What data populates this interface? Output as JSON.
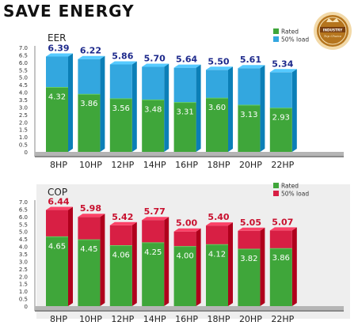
{
  "page": {
    "heading": "SAVE ENERGY",
    "badge": {
      "icon": "industry-award-badge-icon",
      "line1": "INDUSTRY",
      "line2": "Top Choice"
    }
  },
  "colors": {
    "rated": "#3fa63a",
    "eer_load": "#33a7df",
    "cop_load": "#d81f44",
    "eer_top_text": "#1e2a8c",
    "cop_top_text": "#c8102e",
    "panel_bg": "#eeeeee"
  },
  "chart_data": [
    {
      "type": "bar",
      "title": "EER",
      "categories": [
        "8HP",
        "10HP",
        "12HP",
        "14HP",
        "16HP",
        "18HP",
        "20HP",
        "22HP"
      ],
      "series": [
        {
          "name": "Rated",
          "values": [
            4.32,
            3.86,
            3.56,
            3.48,
            3.31,
            3.6,
            3.13,
            2.93
          ]
        },
        {
          "name": "50% load",
          "values": [
            6.39,
            6.22,
            5.86,
            5.7,
            5.64,
            5.5,
            5.61,
            5.34
          ]
        }
      ],
      "value_labels": {
        "rated": [
          "4.32",
          "3.86",
          "3.56",
          "3.48",
          "3.31",
          "3.60",
          "3.13",
          "2.93"
        ],
        "load": [
          "6.39",
          "6.22",
          "5.86",
          "5.70",
          "5.64",
          "5.50",
          "5.61",
          "5.34"
        ]
      },
      "yticks": [
        "7.0",
        "6.5",
        "6.0",
        "5.5",
        "5.0",
        "4.5",
        "4.0",
        "3.5",
        "3.0",
        "2.5",
        "2.0",
        "1.5",
        "1.0",
        "0.5",
        "0"
      ],
      "ylim": [
        0,
        7
      ],
      "grid": false,
      "legend_position": "top-right"
    },
    {
      "type": "bar",
      "title": "COP",
      "categories": [
        "8HP",
        "10HP",
        "12HP",
        "14HP",
        "16HP",
        "18HP",
        "20HP",
        "22HP"
      ],
      "series": [
        {
          "name": "Rated",
          "values": [
            4.65,
            4.45,
            4.06,
            4.25,
            4.0,
            4.12,
            3.82,
            3.86
          ]
        },
        {
          "name": "50% load",
          "values": [
            6.44,
            5.98,
            5.42,
            5.77,
            5.0,
            5.4,
            5.05,
            5.07
          ]
        }
      ],
      "value_labels": {
        "rated": [
          "4.65",
          "4.45",
          "4.06",
          "4.25",
          "4.00",
          "4.12",
          "3.82",
          "3.86"
        ],
        "load": [
          "6.44",
          "5.98",
          "5.42",
          "5.77",
          "5.00",
          "5.40",
          "5.05",
          "5.07"
        ]
      },
      "yticks": [
        "7.0",
        "6.5",
        "6.0",
        "5.5",
        "5.0",
        "4.5",
        "4.0",
        "3.5",
        "3.0",
        "2.5",
        "2.0",
        "1.5",
        "1.0",
        "0.5",
        "0"
      ],
      "ylim": [
        0,
        7
      ],
      "grid": false,
      "legend_position": "top-right"
    }
  ]
}
